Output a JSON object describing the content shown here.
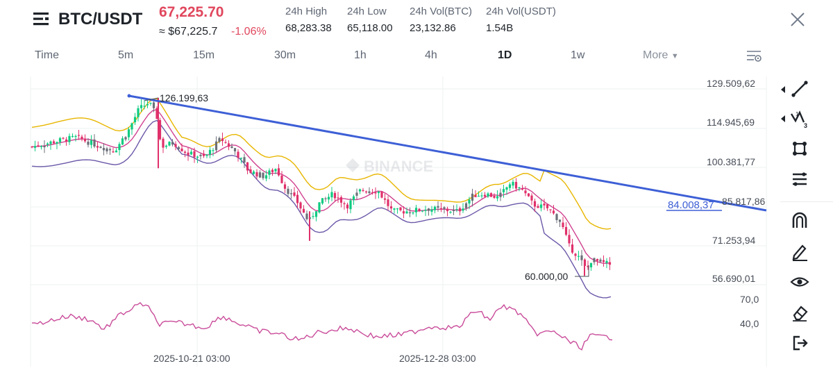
{
  "header": {
    "pair": "BTC/USDT",
    "last_price": "67,225.70",
    "usd_price": "≈ $67,225.7",
    "change": "-1.06%",
    "stats": [
      {
        "label": "24h High",
        "value": "68,283.38"
      },
      {
        "label": "24h Low",
        "value": "65,118.00"
      },
      {
        "label": "24h Vol(BTC)",
        "value": "23,132.86"
      },
      {
        "label": "24h Vol(USDT)",
        "value": "1.54B"
      }
    ]
  },
  "tabs": {
    "items": [
      "Time",
      "5m",
      "15m",
      "30m",
      "1h",
      "4h",
      "1D",
      "1w"
    ],
    "active": "1D",
    "more_label": "More"
  },
  "chart": {
    "watermark": "BINANCE",
    "y_axis_labels": [
      "129.509,62",
      "114.945,69",
      "100.381,77",
      "85.817,86",
      "71.253,94",
      "56.690,01"
    ],
    "rsi_labels": [
      "70,0",
      "40,0"
    ],
    "x_axis_labels": [
      "2025-10-21 03:00",
      "2025-12-28 03:00"
    ],
    "high_annotation": "126.199,63",
    "low_annotation": "60.000,00",
    "trendline_label": "84.008,37",
    "colors": {
      "bull": "#0ecb81",
      "bear": "#e0306a",
      "candle_gray": "#6b6f78",
      "upper_band": "#e8b600",
      "mid_band": "#d0418f",
      "lower_band": "#6b57a8",
      "trendline": "#3d5fd6",
      "rsi": "#c94c9a",
      "price_red": "#e0475d"
    }
  },
  "toolbar": {
    "tools": [
      "trendline-icon",
      "wave-icon",
      "shape-icon",
      "fib-icon",
      "magnet-icon",
      "pencil-icon",
      "eye-icon",
      "eraser-icon",
      "exit-icon"
    ]
  }
}
